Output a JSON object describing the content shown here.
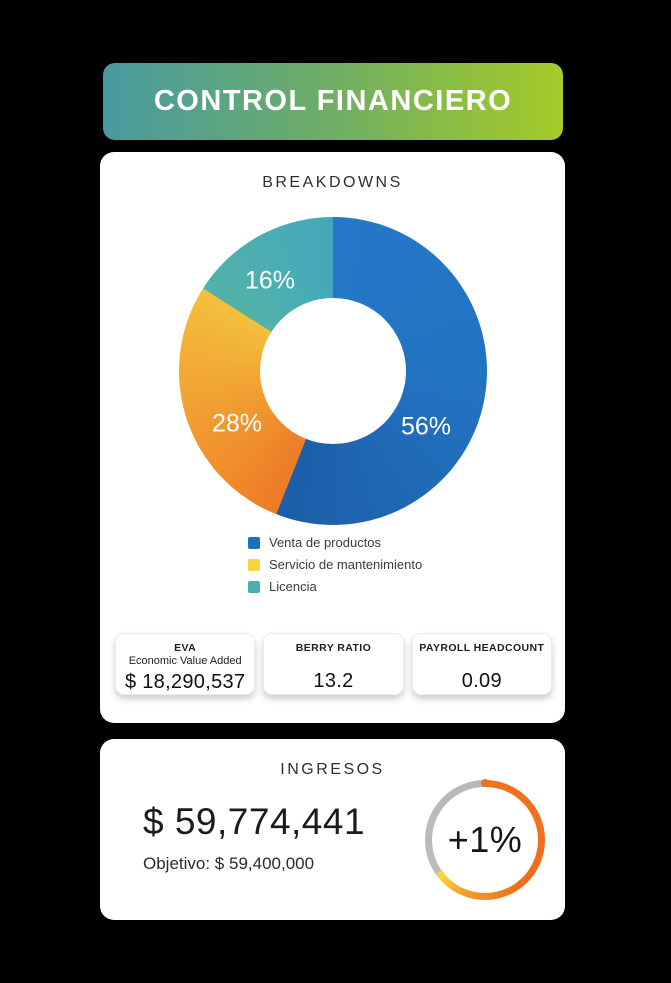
{
  "background_color": "#000000",
  "header": {
    "title": "CONTROL FINANCIERO",
    "gradient_start": "#479aa1",
    "gradient_end": "#a4cb27",
    "text_color": "#ffffff"
  },
  "breakdowns": {
    "title": "BREAKDOWNS",
    "stats": [
      {
        "title": "EVA",
        "subtitle": "Economic Value Added",
        "value": "$ 18,290,537"
      },
      {
        "title": "BERRY RATIO",
        "value": "13.2"
      },
      {
        "title": "PAYROLL HEADCOUNT",
        "value": "0.09"
      }
    ]
  },
  "ingresos": {
    "title": "INGRESOS",
    "value": "$ 59,774,441",
    "objective": "Objetivo: $ 59,400,000",
    "gauge_label": "+1%"
  },
  "chart_data": [
    {
      "type": "pie",
      "title": "BREAKDOWNS",
      "labels": [
        "Venta de productos",
        "Servicio de mantenimiento",
        "Licencia"
      ],
      "values": [
        56,
        28,
        16
      ],
      "unit": "%",
      "data_labels": [
        "56%",
        "28%",
        "16%"
      ],
      "colors": [
        "#1d70c0",
        "#f8d53f",
        "#4aadb5"
      ],
      "slice_gradients": [
        [
          "#2478c7",
          "#1c5ea8"
        ],
        [
          "#ee7b27",
          "#f3c03c"
        ],
        [
          "#52b2a8",
          "#44a8bc"
        ]
      ],
      "donut_hole_ratio": 0.47,
      "start_angle_deg": 0,
      "direction": "clockwise",
      "legend_position": "bottom",
      "data_label_color": "#ffffff"
    },
    {
      "type": "gauge",
      "title": "INGRESOS",
      "label": "+1%",
      "value": 59774441,
      "target": 59400000,
      "currency": "$",
      "arc_percent": 64,
      "arc_start_deg": 0,
      "arc_end_deg": 232,
      "arc_colors": [
        "#f0731f",
        "#f8d73e"
      ],
      "track_color": "#bfbfbf"
    }
  ]
}
